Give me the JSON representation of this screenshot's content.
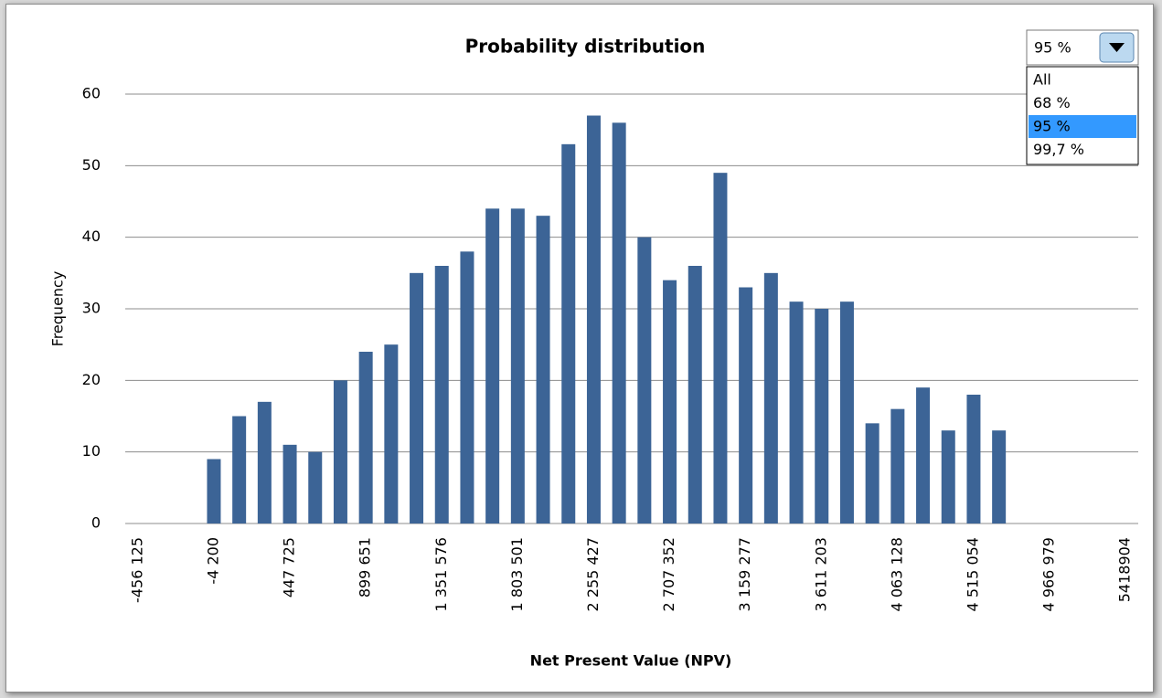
{
  "chart_data": {
    "type": "bar",
    "title": "Probability distribution",
    "x_label": "Net Present Value (NPV)",
    "y_label": "Frequency",
    "color": "#3c6496",
    "grid": true,
    "categories": [
      "-456 125",
      null,
      null,
      "-4 200",
      null,
      null,
      "447 725",
      null,
      null,
      "899 651",
      null,
      null,
      "1 351 576",
      null,
      null,
      "1 803 501",
      null,
      null,
      "2 255 427",
      null,
      null,
      "2 707 352",
      null,
      null,
      "3 159 277",
      null,
      null,
      "3 611 203",
      null,
      null,
      "4 063 128",
      null,
      null,
      "4 515 054",
      null,
      null,
      "4 966 979",
      null,
      null,
      "5418904"
    ],
    "values": [
      null,
      null,
      null,
      9,
      15,
      17,
      11,
      10,
      20,
      24,
      25,
      35,
      36,
      38,
      44,
      44,
      43,
      53,
      57,
      56,
      40,
      34,
      36,
      49,
      33,
      35,
      31,
      30,
      31,
      14,
      16,
      19,
      13,
      18,
      13,
      null,
      null,
      null,
      null,
      null
    ],
    "ylim": [
      0,
      60
    ],
    "yticks": [
      0,
      10,
      20,
      30,
      40,
      50,
      60
    ],
    "selector": {
      "selected": "95 %",
      "options": [
        "All",
        "68 %",
        "95 %",
        "99,7 %"
      ],
      "highlighted": 2
    }
  }
}
